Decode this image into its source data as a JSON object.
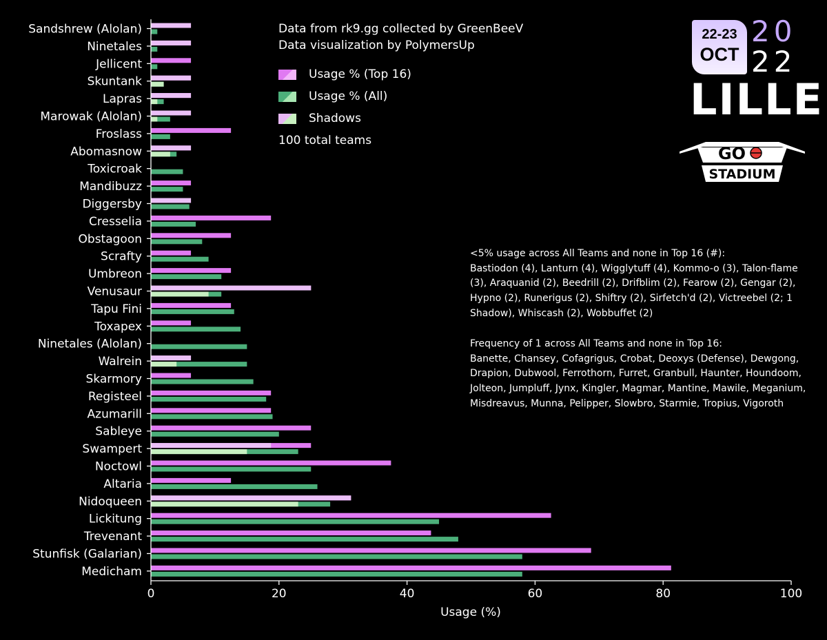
{
  "header": {
    "credit_line_1": "Data from rk9.gg collected by GreenBeeV",
    "credit_line_2": "Data visualization by PolymersUp",
    "total_teams": "100 total teams"
  },
  "legend": [
    {
      "label": "Usage % (Top 16)",
      "color_a": "#e07af2",
      "color_b": "#f3b6fa"
    },
    {
      "label": "Usage % (All)",
      "color_a": "#4caf7a",
      "color_b": "#a8e6b2"
    },
    {
      "label": "Shadows",
      "color_a": "#e8b8f5",
      "color_b": "#c8f0c0"
    }
  ],
  "notes": {
    "low_usage_title": "<5% usage across All Teams and none in Top 16 (#):",
    "low_usage_body": "Bastiodon (4), Lanturn (4), Wigglytuff (4), Kommo-o (3), Talon-flame (3), Araquanid (2), Beedrill (2), Drifblim (2), Fearow (2), Gengar (2), Hypno (2), Runerigus (2), Shiftry (2), Sirfetch'd (2), Victreebel (2; 1 Shadow), Whiscash (2), Wobbuffet (2)",
    "freq_one_title": "Frequency of 1 across All Teams and none in Top 16:",
    "freq_one_body": "Banette, Chansey, Cofagrigus, Crobat, Deoxys (Defense), Dewgong, Drapion, Dubwool, Ferrothorn, Furret, Granbull, Haunter, Houndoom, Jolteon, Jumpluff, Jynx, Kingler, Magmar, Mantine, Mawile, Meganium, Misdreavus, Munna, Pelipper, Slowbro, Starmie, Tropius, Vigoroth"
  },
  "logo": {
    "dates_line_1": "22-23",
    "dates_line_2": "OCT",
    "year_line_1": "20",
    "year_line_2": "22",
    "city": "LILLE",
    "brand_go": "GO",
    "brand_stadium": "STADIUM",
    "accent_color": "#c5a8ff"
  },
  "chart_data": {
    "type": "bar",
    "orientation": "horizontal",
    "xlabel": "Usage (%)",
    "xlim": [
      0,
      100
    ],
    "xticks": [
      0,
      20,
      40,
      60,
      80,
      100
    ],
    "grid": false,
    "legend_position": "top-center",
    "categories": [
      "Sandshrew (Alolan)",
      "Ninetales",
      "Jellicent",
      "Skuntank",
      "Lapras",
      "Marowak (Alolan)",
      "Froslass",
      "Abomasnow",
      "Toxicroak",
      "Mandibuzz",
      "Diggersby",
      "Cresselia",
      "Obstagoon",
      "Scrafty",
      "Umbreon",
      "Venusaur",
      "Tapu Fini",
      "Toxapex",
      "Ninetales (Alolan)",
      "Walrein",
      "Skarmory",
      "Registeel",
      "Azumarill",
      "Sableye",
      "Swampert",
      "Noctowl",
      "Altaria",
      "Nidoqueen",
      "Lickitung",
      "Trevenant",
      "Stunfisk (Galarian)",
      "Medicham"
    ],
    "series": [
      {
        "name": "Usage % (Top 16)",
        "color": "#e07af2",
        "values": [
          6.25,
          6.25,
          6.25,
          6.25,
          6.25,
          6.25,
          12.5,
          6.25,
          0,
          6.25,
          6.25,
          18.75,
          12.5,
          6.25,
          12.5,
          25,
          12.5,
          6.25,
          0,
          6.25,
          6.25,
          18.75,
          18.75,
          25,
          25,
          37.5,
          12.5,
          31.25,
          62.5,
          43.75,
          68.75,
          81.25
        ]
      },
      {
        "name": "Usage % (All)",
        "color": "#4caf7a",
        "values": [
          1,
          1,
          1,
          2,
          2,
          3,
          3,
          4,
          5,
          5,
          6,
          7,
          8,
          9,
          11,
          11,
          13,
          14,
          15,
          15,
          16,
          18,
          19,
          20,
          23,
          25,
          26,
          28,
          45,
          48,
          58,
          58
        ]
      },
      {
        "name": "Shadows (Top 16)",
        "color": "#ebc0f7",
        "values": [
          6.25,
          6.25,
          0,
          6.25,
          6.25,
          6.25,
          0,
          6.25,
          0,
          0,
          6.25,
          0,
          0,
          0,
          0,
          25,
          0,
          0,
          0,
          6.25,
          0,
          0,
          0,
          0,
          18.75,
          0,
          0,
          31.25,
          0,
          0,
          0,
          0
        ]
      },
      {
        "name": "Shadows (All)",
        "color": "#c6efc0",
        "values": [
          0,
          0,
          0,
          2,
          1,
          1,
          0,
          3,
          0,
          0,
          0,
          0,
          0,
          0,
          0,
          9,
          0,
          0,
          0,
          4,
          0,
          0,
          0,
          0,
          15,
          0,
          0,
          23,
          0,
          0,
          0,
          0
        ]
      }
    ]
  }
}
